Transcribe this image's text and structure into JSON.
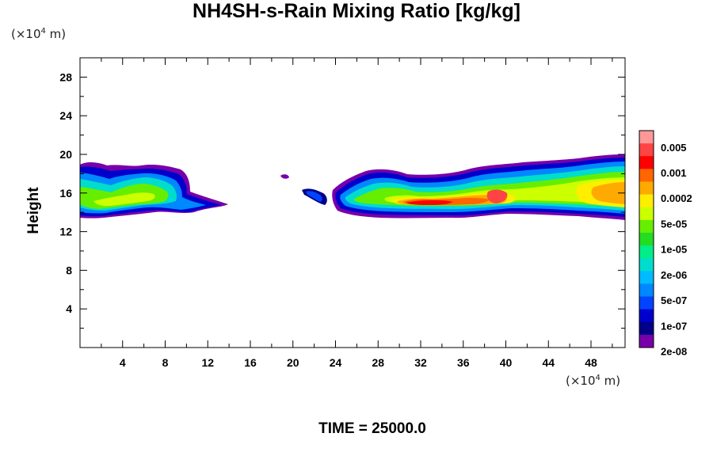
{
  "title": "NH4SH-s-Rain Mixing Ratio [kg/kg]",
  "y_unit_label": "(×10",
  "y_unit_exp": "4",
  "y_unit_tail": " m)",
  "x_unit_label": "(×10",
  "x_unit_exp": "4",
  "x_unit_tail": " m)",
  "ylabel": "Height",
  "time_label": "TIME = 25000.0",
  "chart_data": {
    "type": "heatmap",
    "title": "NH4SH-s-Rain Mixing Ratio [kg/kg]",
    "xlabel": "",
    "ylabel": "Height",
    "x_unit": "(×10^4 m)",
    "y_unit": "(×10^4 m)",
    "xlim": [
      0,
      51.2
    ],
    "ylim": [
      0,
      30
    ],
    "x_ticks": [
      4,
      8,
      12,
      16,
      20,
      24,
      28,
      32,
      36,
      40,
      44,
      48
    ],
    "y_ticks": [
      4,
      8,
      12,
      16,
      20,
      24,
      28
    ],
    "colorbar": {
      "labels": [
        "0.005",
        "0.001",
        "0.0002",
        "5e-05",
        "1e-05",
        "2e-06",
        "5e-07",
        "1e-07",
        "2e-08"
      ],
      "colors": [
        "#ff9999",
        "#ff4444",
        "#ff0000",
        "#ff6600",
        "#ffaa00",
        "#ffee00",
        "#ccff00",
        "#66ee00",
        "#22dd22",
        "#00ee88",
        "#00ddcc",
        "#00bbff",
        "#0088ff",
        "#0044ff",
        "#0000cc",
        "#000088",
        "#7700aa"
      ]
    },
    "features": [
      {
        "x": [
          0,
          13.5
        ],
        "y": [
          13.0,
          19.0
        ],
        "peak": "5e-05"
      },
      {
        "x": [
          18.5,
          19.5
        ],
        "y": [
          17.5,
          18.5
        ],
        "peak": "2e-08"
      },
      {
        "x": [
          22.8,
          26.5
        ],
        "y": [
          15.0,
          16.5
        ],
        "peak": "1e-07"
      },
      {
        "x": [
          24.5,
          51.2
        ],
        "y": [
          13.0,
          19.5
        ],
        "peak": "0.005"
      }
    ]
  }
}
